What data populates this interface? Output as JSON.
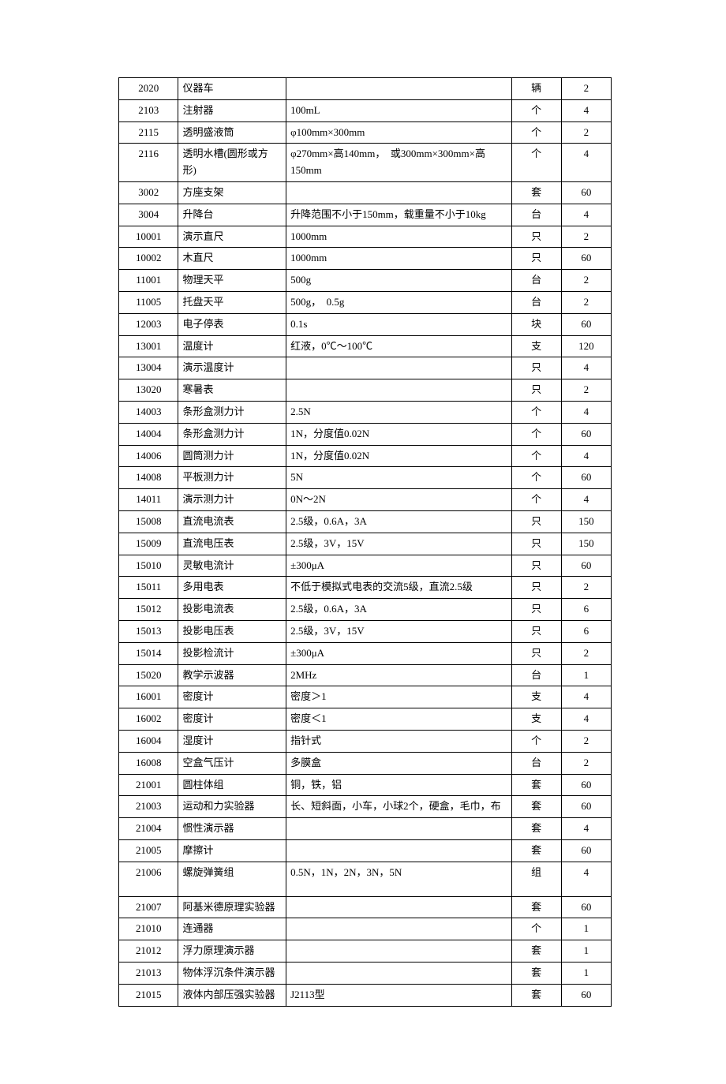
{
  "table": {
    "columns": {
      "id_width": 74,
      "name_width": 134,
      "spec_width": 280,
      "unit_width": 62,
      "qty_width": 62
    },
    "border_color": "#000000",
    "background_color": "#ffffff",
    "font_size": 13,
    "rows": [
      {
        "id": "2020",
        "name": "仪器车",
        "spec": "",
        "unit": "辆",
        "qty": "2"
      },
      {
        "id": "2103",
        "name": "注射器",
        "spec": "100mL",
        "unit": "个",
        "qty": "4"
      },
      {
        "id": "2115",
        "name": "透明盛液筒",
        "spec": "φ100mm×300mm",
        "unit": "个",
        "qty": "2"
      },
      {
        "id": "2116",
        "name": "透明水槽(圆形或方形)",
        "spec": "φ270mm×高140mm，　或300mm×300mm×高150mm",
        "unit": "个",
        "qty": "4"
      },
      {
        "id": "3002",
        "name": "方座支架",
        "spec": "",
        "unit": "套",
        "qty": "60"
      },
      {
        "id": "3004",
        "name": "升降台",
        "spec": "升降范围不小于150mm，载重量不小于10kg",
        "unit": "台",
        "qty": "4"
      },
      {
        "id": "10001",
        "name": "演示直尺",
        "spec": "1000mm",
        "unit": "只",
        "qty": "2"
      },
      {
        "id": "10002",
        "name": "木直尺",
        "spec": "1000mm",
        "unit": "只",
        "qty": "60"
      },
      {
        "id": "11001",
        "name": "物理天平",
        "spec": "500g",
        "unit": "台",
        "qty": "2"
      },
      {
        "id": "11005",
        "name": "托盘天平",
        "spec": "500g，　0.5g",
        "unit": "台",
        "qty": "2"
      },
      {
        "id": "12003",
        "name": "电子停表",
        "spec": "0.1s",
        "unit": "块",
        "qty": "60"
      },
      {
        "id": "13001",
        "name": "温度计",
        "spec": "红液，0℃～100℃",
        "unit": "支",
        "qty": "120"
      },
      {
        "id": "13004",
        "name": "演示温度计",
        "spec": "",
        "unit": "只",
        "qty": "4"
      },
      {
        "id": "13020",
        "name": "寒暑表",
        "spec": "",
        "unit": "只",
        "qty": "2"
      },
      {
        "id": "14003",
        "name": "条形盒测力计",
        "spec": "2.5N",
        "unit": "个",
        "qty": "4"
      },
      {
        "id": "14004",
        "name": "条形盒测力计",
        "spec": "1N，分度值0.02N",
        "unit": "个",
        "qty": "60"
      },
      {
        "id": "14006",
        "name": "圆筒测力计",
        "spec": "1N，分度值0.02N",
        "unit": "个",
        "qty": "4"
      },
      {
        "id": "14008",
        "name": "平板测力计",
        "spec": "5N",
        "unit": "个",
        "qty": "60"
      },
      {
        "id": "14011",
        "name": "演示测力计",
        "spec": "0N～2N",
        "unit": "个",
        "qty": "4"
      },
      {
        "id": "15008",
        "name": "直流电流表",
        "spec": "2.5级，0.6A，3A",
        "unit": "只",
        "qty": "150"
      },
      {
        "id": "15009",
        "name": "直流电压表",
        "spec": "2.5级，3V，15V",
        "unit": "只",
        "qty": "150"
      },
      {
        "id": "15010",
        "name": "灵敏电流计",
        "spec": "±300μA",
        "unit": "只",
        "qty": "60"
      },
      {
        "id": "15011",
        "name": "多用电表",
        "spec": "不低于模拟式电表的交流5级，直流2.5级",
        "unit": "只",
        "qty": "2"
      },
      {
        "id": "15012",
        "name": "投影电流表",
        "spec": "2.5级，0.6A，3A",
        "unit": "只",
        "qty": "6"
      },
      {
        "id": "15013",
        "name": "投影电压表",
        "spec": "2.5级，3V，15V",
        "unit": "只",
        "qty": "6"
      },
      {
        "id": "15014",
        "name": "投影检流计",
        "spec": "±300μA",
        "unit": "只",
        "qty": "2"
      },
      {
        "id": "15020",
        "name": "教学示波器",
        "spec": "2MHz",
        "unit": "台",
        "qty": "1"
      },
      {
        "id": "16001",
        "name": "密度计",
        "spec": "密度＞1",
        "unit": "支",
        "qty": "4"
      },
      {
        "id": "16002",
        "name": "密度计",
        "spec": "密度＜1",
        "unit": "支",
        "qty": "4"
      },
      {
        "id": "16004",
        "name": "湿度计",
        "spec": "指针式",
        "unit": "个",
        "qty": "2"
      },
      {
        "id": "16008",
        "name": "空盒气压计",
        "spec": "多膜盒",
        "unit": "台",
        "qty": "2"
      },
      {
        "id": "21001",
        "name": "圆柱体组",
        "spec": "铜，铁，铝",
        "unit": "套",
        "qty": "60"
      },
      {
        "id": "21003",
        "name": "运动和力实验器",
        "spec": "长、短斜面，小车，小球2个，硬盒，毛巾，布",
        "unit": "套",
        "qty": "60"
      },
      {
        "id": "21004",
        "name": "惯性演示器",
        "spec": "",
        "unit": "套",
        "qty": "4"
      },
      {
        "id": "21005",
        "name": "摩擦计",
        "spec": "",
        "unit": "套",
        "qty": "60"
      },
      {
        "id": "21006",
        "name": "螺旋弹簧组",
        "spec": "0.5N，1N，2N，3N，5N",
        "unit": "组",
        "qty": "4",
        "tall": true
      },
      {
        "id": "21007",
        "name": "阿基米德原理实验器",
        "spec": "",
        "unit": "套",
        "qty": "60"
      },
      {
        "id": "21010",
        "name": "连通器",
        "spec": "",
        "unit": "个",
        "qty": "1"
      },
      {
        "id": "21012",
        "name": "浮力原理演示器",
        "spec": "",
        "unit": "套",
        "qty": "1"
      },
      {
        "id": "21013",
        "name": "物体浮沉条件演示器",
        "spec": "",
        "unit": "套",
        "qty": "1"
      },
      {
        "id": "21015",
        "name": "液体内部压强实验器",
        "spec": "J2113型",
        "unit": "套",
        "qty": "60"
      }
    ]
  }
}
